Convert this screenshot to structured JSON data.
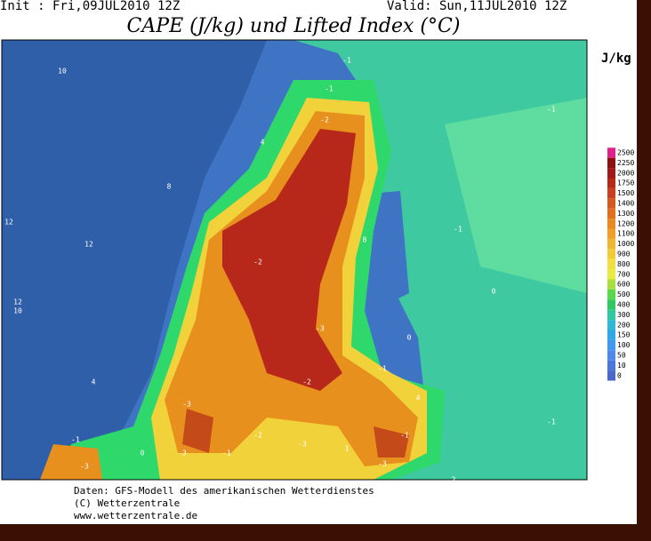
{
  "header": {
    "init": "Init : Fri,09JUL2010 12Z",
    "valid": "Valid: Sun,11JUL2010 12Z",
    "title": "CAPE (J/kg) und Lifted Index (°C)"
  },
  "colorbar": {
    "unit": "J/kg",
    "levels": [
      "2500",
      "2250",
      "2000",
      "1750",
      "1500",
      "1400",
      "1300",
      "1200",
      "1100",
      "1000",
      "900",
      "800",
      "700",
      "600",
      "500",
      "400",
      "300",
      "200",
      "150",
      "100",
      "50",
      "10",
      "0"
    ]
  },
  "map_labels": [
    "10",
    "8",
    "12",
    "12",
    "10",
    "4",
    "-1",
    "-1",
    "-1",
    "-1",
    "-1",
    "-1",
    "-2",
    "-2",
    "-3",
    "-3",
    "-3",
    "-3",
    "-2",
    "-1",
    "0",
    "0",
    "4",
    "8",
    "12",
    "-1",
    "-3",
    "-3",
    "-2",
    "-1",
    "0",
    "1",
    "2",
    "4"
  ],
  "footer": {
    "line1": "Daten: GFS-Modell des amerikanischen Wetterdienstes",
    "line2": "(C) Wetterzentrale",
    "line3": "www.wetterzentrale.de"
  }
}
